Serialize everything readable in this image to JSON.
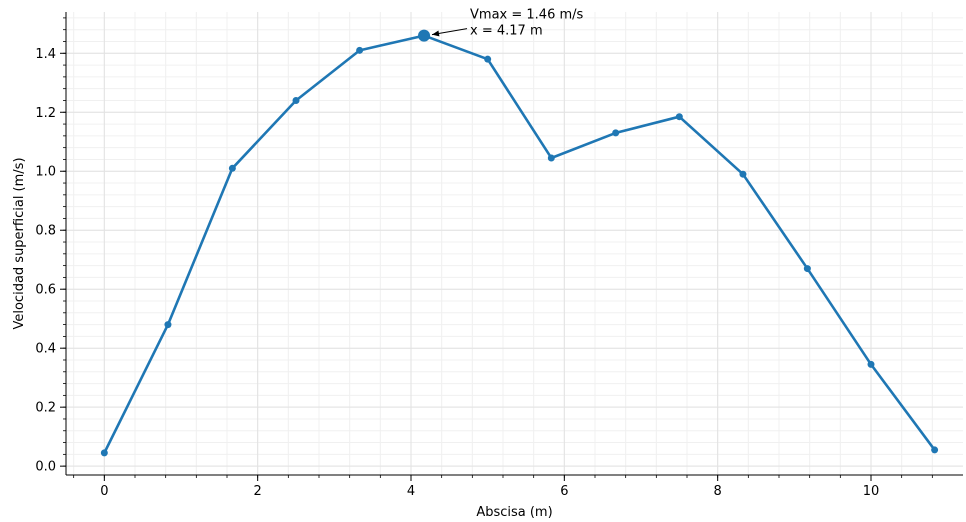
{
  "chart_data": {
    "type": "line",
    "xlabel": "Abscisa (m)",
    "ylabel": "Velocidad superficial (m/s)",
    "xlim": [
      -0.5,
      11.2
    ],
    "ylim": [
      -0.03,
      1.54
    ],
    "xticks": [
      0,
      2,
      4,
      6,
      8,
      10
    ],
    "xtick_labels": [
      "0",
      "2",
      "4",
      "6",
      "8",
      "10"
    ],
    "yticks": [
      0.0,
      0.2,
      0.4,
      0.6,
      0.8,
      1.0,
      1.2,
      1.4
    ],
    "ytick_labels": [
      "0.0",
      "0.2",
      "0.4",
      "0.6",
      "0.8",
      "1.0",
      "1.2",
      "1.4"
    ],
    "grid": true,
    "series": [
      {
        "color": "#1f77b4",
        "x": [
          0.0,
          0.83,
          1.67,
          2.5,
          3.33,
          4.17,
          5.0,
          5.83,
          6.67,
          7.5,
          8.33,
          9.17,
          10.0,
          10.83
        ],
        "y": [
          0.045,
          0.48,
          1.01,
          1.24,
          1.41,
          1.46,
          1.38,
          1.045,
          1.13,
          1.185,
          0.99,
          0.67,
          0.345,
          0.055
        ]
      }
    ],
    "highlight": {
      "x": 4.17,
      "y": 1.46
    },
    "annotation": {
      "lines": [
        "Vmax = 1.46 m/s",
        "x = 4.17 m"
      ]
    }
  }
}
